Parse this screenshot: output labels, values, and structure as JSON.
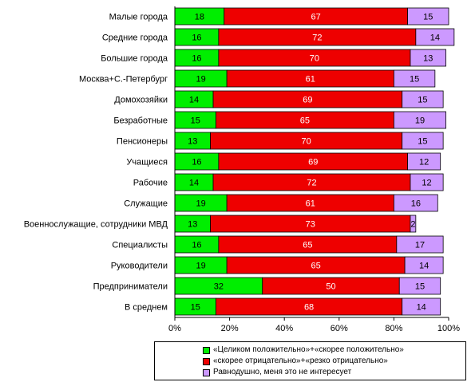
{
  "chart_data": {
    "type": "bar",
    "orientation": "horizontal",
    "stacked": "percent",
    "title": "",
    "xlabel": "",
    "ylabel": "",
    "xlim": [
      0,
      100
    ],
    "x_tick_labels": [
      "0%",
      "20%",
      "40%",
      "60%",
      "80%",
      "100%"
    ],
    "grid": false,
    "legend_position": "bottom",
    "categories": [
      "Малые города",
      "Средние города",
      "Большие города",
      "Москва+С.-Петербург",
      "Домохозяйки",
      "Безработные",
      "Пенсионеры",
      "Учащиеся",
      "Рабочие",
      "Служащие",
      "Военнослужащие, сотрудники МВД",
      "Специалисты",
      "Руководители",
      "Предприниматели",
      "В среднем"
    ],
    "series": [
      {
        "name": "«Целиком положительно»+«скорее положительно»",
        "color": "#00ee00",
        "values": [
          18,
          16,
          16,
          19,
          14,
          15,
          13,
          16,
          14,
          19,
          13,
          16,
          19,
          32,
          15
        ]
      },
      {
        "name": "«скорее отрицательно»+«резко отрицательно»",
        "color": "#ee0000",
        "values": [
          67,
          72,
          70,
          61,
          69,
          65,
          70,
          69,
          72,
          61,
          73,
          65,
          65,
          50,
          68
        ]
      },
      {
        "name": "Равнодушно, меня это не интересует",
        "color": "#cc99ff",
        "values": [
          15,
          14,
          13,
          15,
          15,
          19,
          15,
          12,
          12,
          16,
          2,
          17,
          14,
          15,
          14
        ]
      }
    ]
  }
}
